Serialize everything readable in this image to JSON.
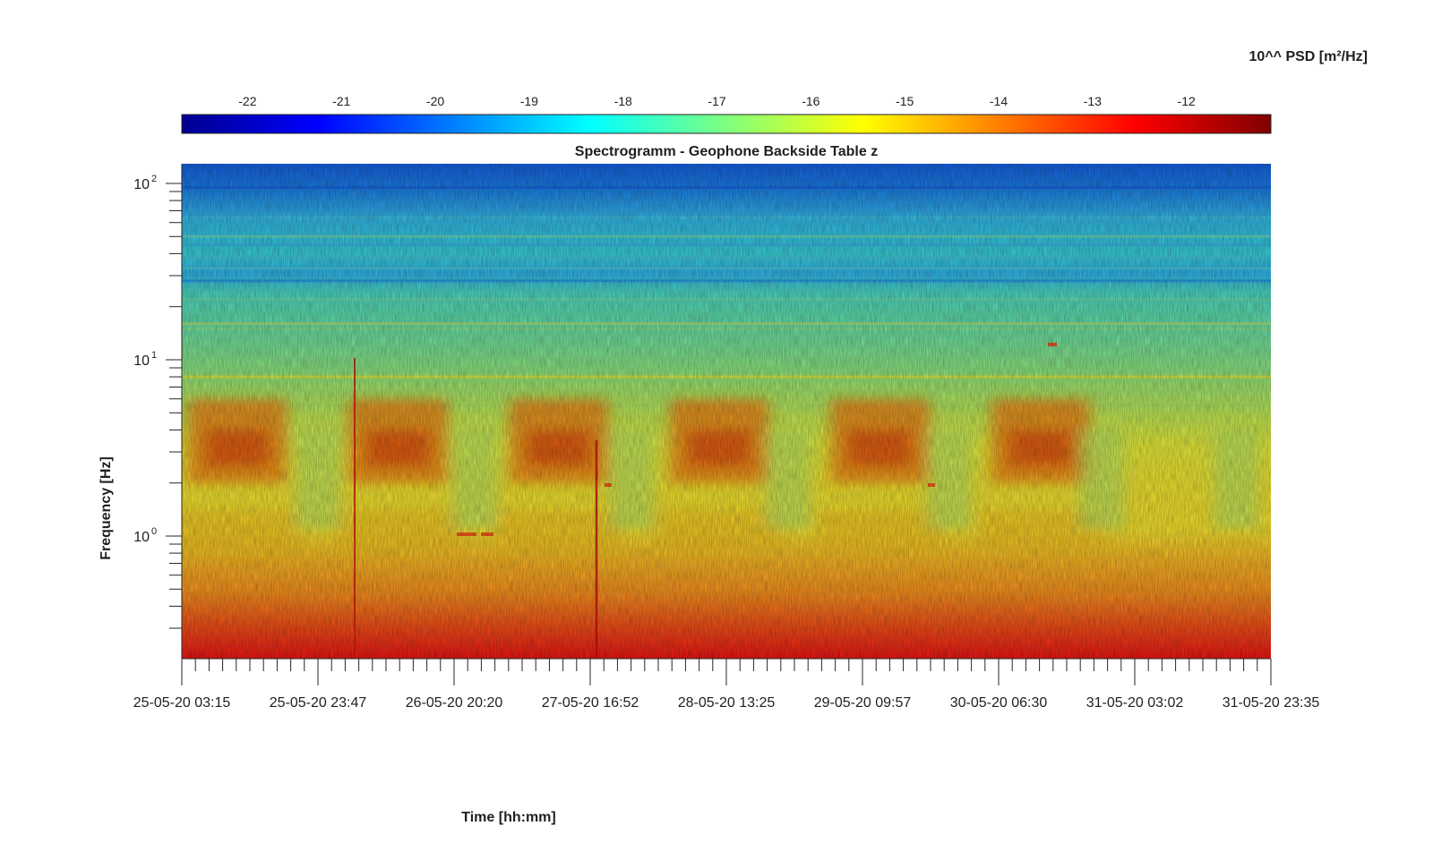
{
  "chart_data": {
    "type": "heatmap",
    "title": "Spectrogramm - Geophone Backside Table z",
    "xlabel": "Time [hh:mm]",
    "ylabel": "Frequency [Hz]",
    "x_ticks": [
      "25-05-20 03:15",
      "25-05-20 23:47",
      "26-05-20 20:20",
      "27-05-20 16:52",
      "28-05-20 13:25",
      "29-05-20 09:57",
      "30-05-20 06:30",
      "31-05-20 03:02",
      "31-05-20 23:35"
    ],
    "y_scale": "log",
    "y_ticks": [
      {
        "base": "10",
        "exp": "2",
        "value": 100
      },
      {
        "base": "10",
        "exp": "1",
        "value": 10
      },
      {
        "base": "10",
        "exp": "0",
        "value": 1
      }
    ],
    "ylim": [
      0.2,
      130
    ],
    "colorbar": {
      "label": "10^^ PSD [m²/Hz]",
      "ticks": [
        "-22",
        "-21",
        "-20",
        "-19",
        "-18",
        "-17",
        "-16",
        "-15",
        "-14",
        "-13",
        "-12"
      ],
      "range": [
        -22.7,
        -11.1
      ],
      "colormap": "jet",
      "position": "top"
    },
    "bands": [
      {
        "freq_range": [
          20,
          130
        ],
        "log_psd": -20.0
      },
      {
        "freq_range": [
          5,
          20
        ],
        "log_psd": -17.5
      },
      {
        "freq_range": [
          1.5,
          5
        ],
        "log_psd": -15.5
      },
      {
        "freq_range": [
          0.7,
          1.5
        ],
        "log_psd": -15.5
      },
      {
        "freq_range": [
          0.2,
          0.7
        ],
        "log_psd": -13.8
      }
    ],
    "daytime_peaks": [
      {
        "time": "25-05-20 ~12:00",
        "freq_range": [
          2,
          6
        ],
        "log_psd": -13.5
      },
      {
        "time": "26-05-20 ~12:00",
        "freq_range": [
          2,
          6
        ],
        "log_psd": -13.5
      },
      {
        "time": "27-05-20 ~12:00",
        "freq_range": [
          2,
          6
        ],
        "log_psd": -14.0
      },
      {
        "time": "28-05-20 ~12:00",
        "freq_range": [
          2,
          6
        ],
        "log_psd": -13.5
      },
      {
        "time": "29-05-20 ~12:00",
        "freq_range": [
          2,
          6
        ],
        "log_psd": -13.5
      },
      {
        "time": "30-05-20 ~12:00",
        "freq_range": [
          2,
          6
        ],
        "log_psd": -13.8
      }
    ]
  }
}
